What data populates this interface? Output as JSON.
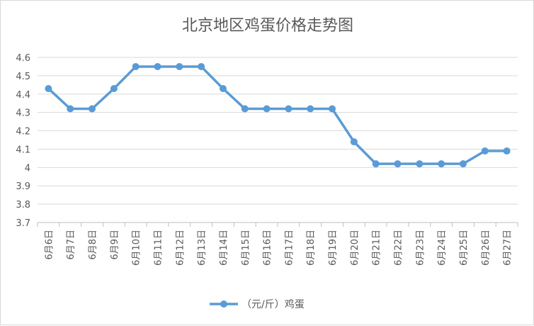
{
  "chart_data": {
    "type": "line",
    "title": "北京地区鸡蛋价格走势图",
    "categories": [
      "6月6日",
      "6月7日",
      "6月8日",
      "6月9日",
      "6月10日",
      "6月11日",
      "6月12日",
      "6月13日",
      "6月14日",
      "6月15日",
      "6月16日",
      "6月17日",
      "6月18日",
      "6月19日",
      "6月20日",
      "6月21日",
      "6月22日",
      "6月23日",
      "6月24日",
      "6月25日",
      "6月26日",
      "6月27日"
    ],
    "series": [
      {
        "name": "（元/斤）鸡蛋",
        "values": [
          4.43,
          4.32,
          4.32,
          4.43,
          4.55,
          4.55,
          4.55,
          4.55,
          4.43,
          4.32,
          4.32,
          4.32,
          4.32,
          4.32,
          4.14,
          4.02,
          4.02,
          4.02,
          4.02,
          4.02,
          4.09,
          4.09
        ]
      }
    ],
    "ylim": [
      3.7,
      4.6
    ],
    "yticks": [
      "3.7",
      "3.8",
      "3.9",
      "4",
      "4.1",
      "4.2",
      "4.3",
      "4.4",
      "4.5",
      "4.6"
    ],
    "grid": true,
    "legend_position": "bottom",
    "line_color": "#5b9bd5",
    "grid_color": "#d9d9d9"
  }
}
